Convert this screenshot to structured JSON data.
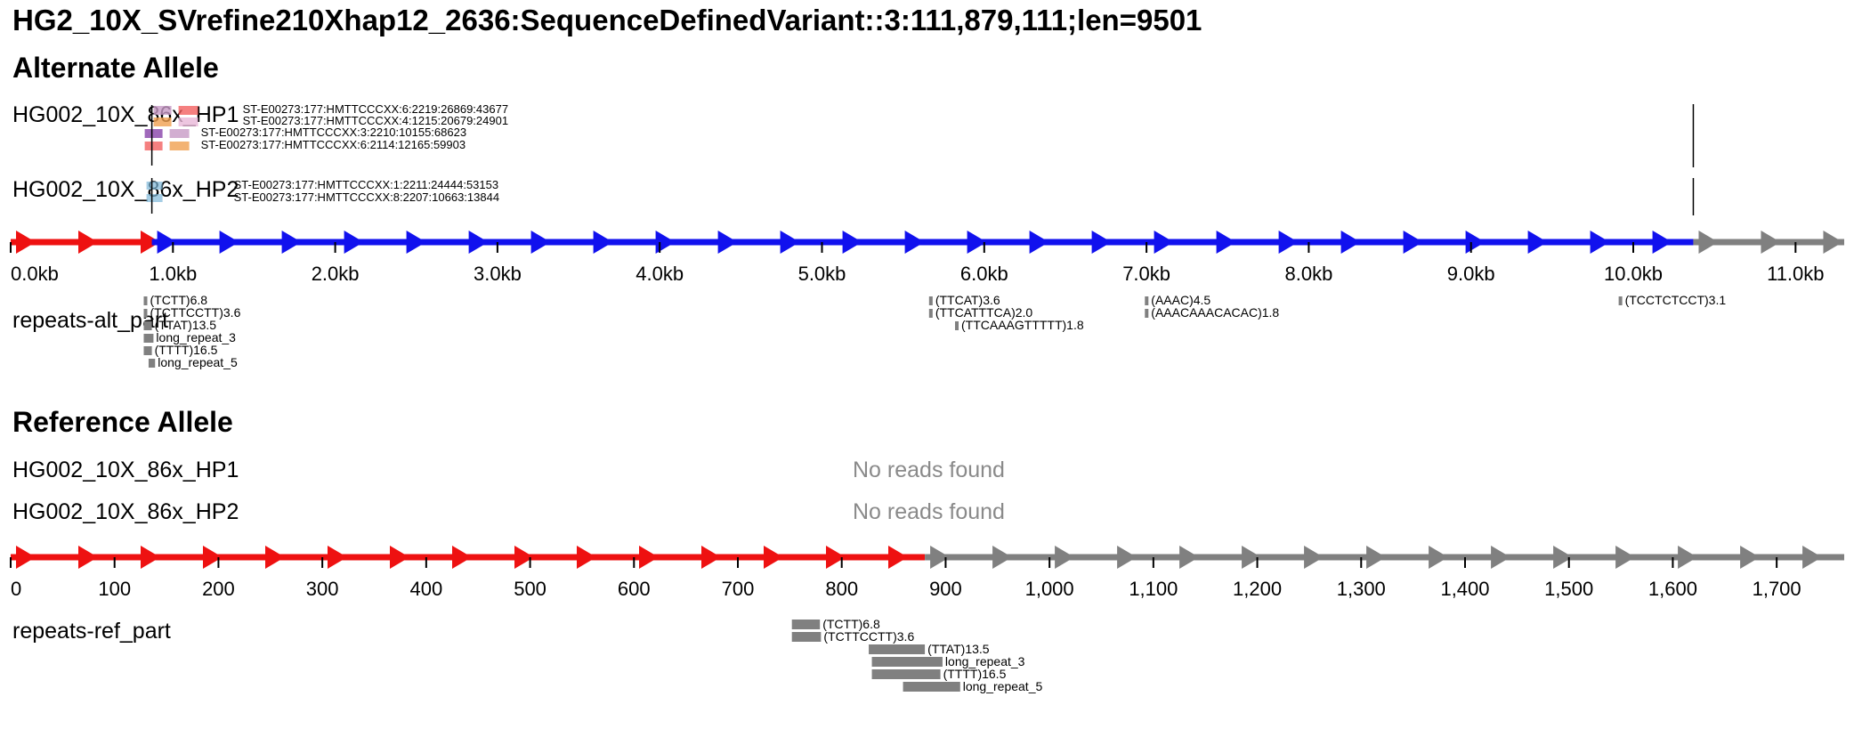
{
  "header": {
    "title": "HG2_10X_SVrefine210Xhap12_2636:SequenceDefinedVariant::3:111,879,111;len=9501"
  },
  "alt": {
    "heading": "Alternate Allele",
    "tracks": [
      {
        "label": "HG002_10X_86x_HP1",
        "reads": [
          "ST-E00273:177:HMTTCCCXX:6:2219:26869:43677",
          "ST-E00273:177:HMTTCCCXX:4:1215:20679:24901",
          "ST-E00273:177:HMTTCCCXX:3:2210:10155:68623",
          "ST-E00273:177:HMTTCCCXX:6:2114:12165:59903"
        ]
      },
      {
        "label": "HG002_10X_86x_HP2",
        "reads": [
          "ST-E00273:177:HMTTCCCXX:1:2211:24444:53153",
          "ST-E00273:177:HMTTCCCXX:8:2207:10663:13844"
        ]
      }
    ],
    "axis": {
      "ticks": [
        "0.0kb",
        "1.0kb",
        "2.0kb",
        "3.0kb",
        "4.0kb",
        "5.0kb",
        "6.0kb",
        "7.0kb",
        "8.0kb",
        "9.0kb",
        "10.0kb",
        "11.0kb"
      ],
      "tick_values_kb": [
        0,
        1,
        2,
        3,
        4,
        5,
        6,
        7,
        8,
        9,
        10,
        11
      ],
      "max_kb": 11.3,
      "segments": [
        {
          "name": "ref-left",
          "start_kb": 0.0,
          "end_kb": 0.87,
          "color": "#ee1111"
        },
        {
          "name": "insertion",
          "start_kb": 0.87,
          "end_kb": 10.37,
          "color": "#1111ee"
        },
        {
          "name": "ref-right",
          "start_kb": 10.37,
          "end_kb": 11.3,
          "color": "#808080"
        }
      ]
    },
    "repeats": {
      "label": "repeats-alt_part",
      "items": [
        {
          "text": "(TCTT)6.8",
          "start_kb": 0.82,
          "end_kb": 0.84,
          "row": 0
        },
        {
          "text": "(TCTTCCTT)3.6",
          "start_kb": 0.82,
          "end_kb": 0.84,
          "row": 1
        },
        {
          "text": "(TTAT)13.5",
          "start_kb": 0.82,
          "end_kb": 0.87,
          "row": 2
        },
        {
          "text": "long_repeat_3",
          "start_kb": 0.82,
          "end_kb": 0.88,
          "row": 3
        },
        {
          "text": "(TTTT)16.5",
          "start_kb": 0.82,
          "end_kb": 0.87,
          "row": 4
        },
        {
          "text": "long_repeat_5",
          "start_kb": 0.85,
          "end_kb": 0.89,
          "row": 5
        },
        {
          "text": "(TTCAT)3.6",
          "start_kb": 5.66,
          "end_kb": 5.67,
          "row": 0
        },
        {
          "text": "(TTCATTTCA)2.0",
          "start_kb": 5.66,
          "end_kb": 5.67,
          "row": 1
        },
        {
          "text": "(TTCAAAGTTTTT)1.8",
          "start_kb": 5.82,
          "end_kb": 5.84,
          "row": 2
        },
        {
          "text": "(AAAC)4.5",
          "start_kb": 6.99,
          "end_kb": 7.0,
          "row": 0
        },
        {
          "text": "(AAACAAACACAC)1.8",
          "start_kb": 6.99,
          "end_kb": 7.0,
          "row": 1
        },
        {
          "text": "(TCCTCTCCT)3.1",
          "start_kb": 9.91,
          "end_kb": 9.93,
          "row": 0
        }
      ]
    }
  },
  "ref": {
    "heading": "Reference Allele",
    "tracks": [
      {
        "label": "HG002_10X_86x_HP1",
        "message": "No reads found"
      },
      {
        "label": "HG002_10X_86x_HP2",
        "message": "No reads found"
      }
    ],
    "axis": {
      "ticks": [
        "0",
        "100",
        "200",
        "300",
        "400",
        "500",
        "600",
        "700",
        "800",
        "900",
        "1,000",
        "1,100",
        "1,200",
        "1,300",
        "1,400",
        "1,500",
        "1,600",
        "1,700"
      ],
      "tick_values": [
        0,
        100,
        200,
        300,
        400,
        500,
        600,
        700,
        800,
        900,
        1000,
        1100,
        1200,
        1300,
        1400,
        1500,
        1600,
        1700
      ],
      "max": 1765,
      "segments": [
        {
          "name": "ref-left",
          "start": 0,
          "end": 880,
          "color": "#ee1111"
        },
        {
          "name": "ref-right",
          "start": 880,
          "end": 1765,
          "color": "#808080"
        }
      ]
    },
    "repeats": {
      "label": "repeats-ref_part",
      "items": [
        {
          "text": "(TCTT)6.8",
          "start": 752,
          "end": 779,
          "row": 0
        },
        {
          "text": "(TCTTCCTT)3.6",
          "start": 752,
          "end": 780,
          "row": 1
        },
        {
          "text": "(TTAT)13.5",
          "start": 826,
          "end": 880,
          "row": 2
        },
        {
          "text": "long_repeat_3",
          "start": 829,
          "end": 897,
          "row": 3
        },
        {
          "text": "(TTTT)16.5",
          "start": 829,
          "end": 895,
          "row": 4
        },
        {
          "text": "long_repeat_5",
          "start": 859,
          "end": 914,
          "row": 5
        }
      ]
    }
  }
}
